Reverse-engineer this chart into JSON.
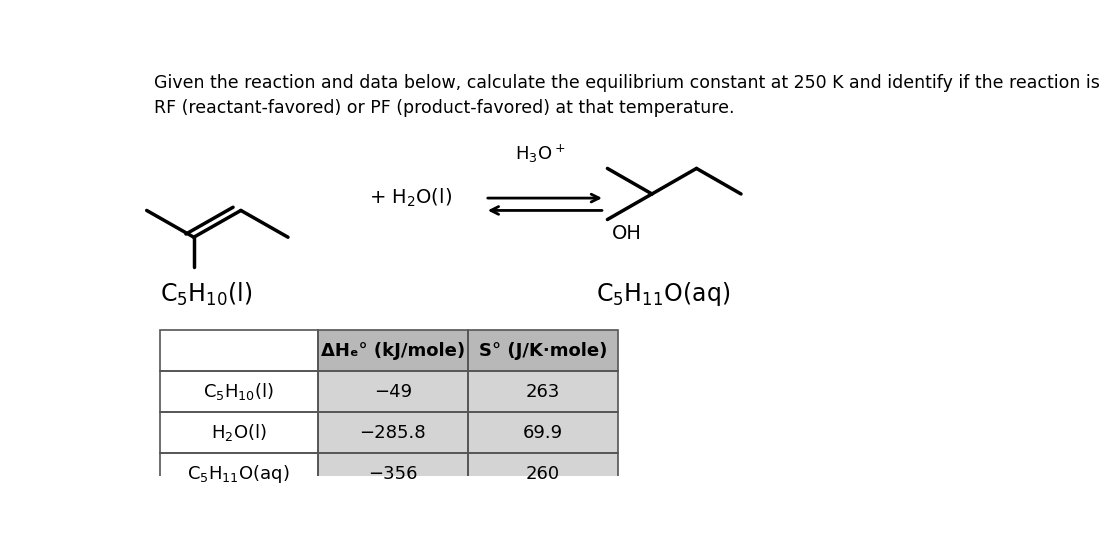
{
  "title_text": "Given the reaction and data below, calculate the equilibrium constant at 250 K and identify if the reaction is\nRF (reactant-favored) or PF (product-favored) at that temperature.",
  "title_fontsize": 12.5,
  "background_color": "#ffffff",
  "text_color": "#000000",
  "label_left": "C$_5$H$_{10}$(l)",
  "label_right": "C$_5$H$_{11}$O(aq)",
  "plus_h2o": "+ H$_2$O(l)",
  "h3o_plus": "H$_3$O$^+$",
  "oh_label": "OH",
  "table_header": [
    "",
    "ΔHₑ° (kJ/mole)",
    "S° (J/K·mole)"
  ],
  "table_rows": [
    [
      "C$_5$H$_{10}$(l)",
      "−49",
      "263"
    ],
    [
      "H$_2$O(l)",
      "−285.8",
      "69.9"
    ],
    [
      "C$_5$H$_{11}$O(aq)",
      "−356",
      "260"
    ]
  ],
  "header_bg": "#b8b8b8",
  "row_bg": "#d4d4d4",
  "cell_text_color": "#000000",
  "header_fontsize": 13,
  "row_fontsize": 13,
  "lw_mol": 2.5
}
